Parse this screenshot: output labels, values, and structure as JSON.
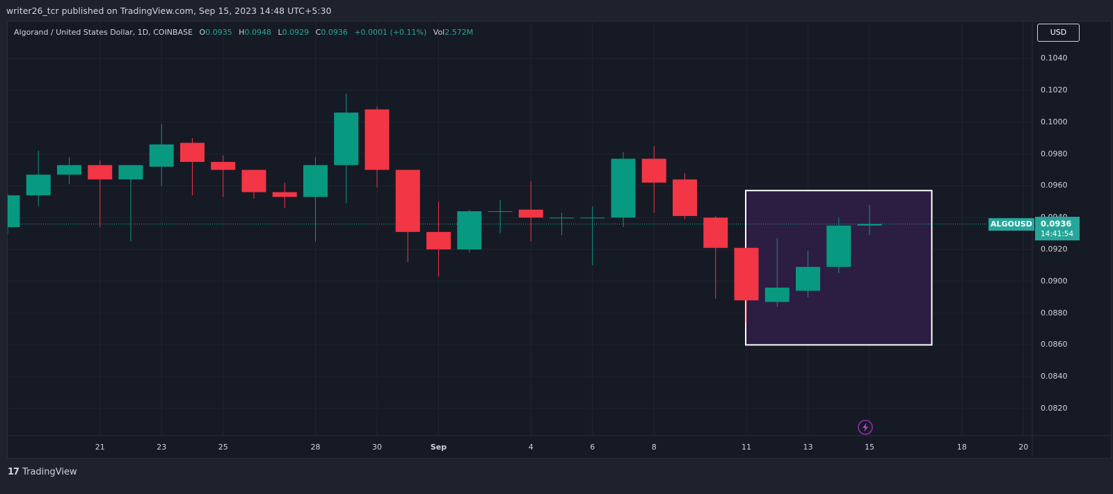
{
  "header": {
    "published": "writer26_tcr published on TradingView.com, Sep 15, 2023 14:48 UTC+5:30"
  },
  "legend": {
    "symbol": "Algorand / United States Dollar, 1D, COINBASE",
    "open_label": "O",
    "open": "0.0935",
    "high_label": "H",
    "high": "0.0948",
    "low_label": "L",
    "low": "0.0929",
    "close_label": "C",
    "close": "0.0936",
    "change": "+0.0001 (+0.11%)",
    "vol_label": "Vol",
    "vol": "2.572M"
  },
  "currency_button": "USD",
  "last_price": {
    "symbol": "ALGOUSD",
    "price": "0.0936",
    "countdown": "14:41:54"
  },
  "footer": {
    "logo_mark": "17",
    "logo_text": "TradingView"
  },
  "colors": {
    "up": "#089981",
    "down": "#f23645",
    "background": "#161a25",
    "grid": "#1f2430",
    "highlight_fill": "#2d1e44",
    "highlight_border": "#ffffff",
    "price_line": "#26a69a"
  },
  "icons": {
    "flash": "flash-icon"
  },
  "chart_data": {
    "type": "candlestick",
    "title": "Algorand / United States Dollar, 1D, COINBASE",
    "price_ticks": [
      "0.1040",
      "0.1020",
      "0.1000",
      "0.0980",
      "0.0960",
      "0.0940",
      "0.0920",
      "0.0900",
      "0.0880",
      "0.0860",
      "0.0840",
      "0.0820"
    ],
    "ylim": [
      0.08,
      0.1062
    ],
    "time_ticks": [
      {
        "label": "21",
        "date": "2023-08-21"
      },
      {
        "label": "23",
        "date": "2023-08-23"
      },
      {
        "label": "25",
        "date": "2023-08-25"
      },
      {
        "label": "28",
        "date": "2023-08-28"
      },
      {
        "label": "30",
        "date": "2023-08-30"
      },
      {
        "label": "Sep",
        "date": "2023-09-01",
        "bold": true
      },
      {
        "label": "4",
        "date": "2023-09-04"
      },
      {
        "label": "6",
        "date": "2023-09-06"
      },
      {
        "label": "8",
        "date": "2023-09-08"
      },
      {
        "label": "11",
        "date": "2023-09-11"
      },
      {
        "label": "13",
        "date": "2023-09-13"
      },
      {
        "label": "15",
        "date": "2023-09-15"
      },
      {
        "label": "18",
        "date": "2023-09-18"
      },
      {
        "label": "20",
        "date": "2023-09-20"
      }
    ],
    "xlim": [
      "2023-08-18",
      "2023-09-21"
    ],
    "candles": [
      {
        "date": "2023-08-18",
        "open": 0.0934,
        "high": 0.0955,
        "low": 0.093,
        "close": 0.0954
      },
      {
        "date": "2023-08-19",
        "open": 0.0954,
        "high": 0.0982,
        "low": 0.0947,
        "close": 0.0967
      },
      {
        "date": "2023-08-20",
        "open": 0.0967,
        "high": 0.0978,
        "low": 0.0961,
        "close": 0.0973
      },
      {
        "date": "2023-08-21",
        "open": 0.0973,
        "high": 0.0976,
        "low": 0.0934,
        "close": 0.0964
      },
      {
        "date": "2023-08-22",
        "open": 0.0964,
        "high": 0.0973,
        "low": 0.0925,
        "close": 0.0973
      },
      {
        "date": "2023-08-23",
        "open": 0.0972,
        "high": 0.0999,
        "low": 0.096,
        "close": 0.0986
      },
      {
        "date": "2023-08-24",
        "open": 0.0987,
        "high": 0.099,
        "low": 0.0954,
        "close": 0.0975
      },
      {
        "date": "2023-08-25",
        "open": 0.0975,
        "high": 0.0979,
        "low": 0.0953,
        "close": 0.097
      },
      {
        "date": "2023-08-26",
        "open": 0.097,
        "high": 0.097,
        "low": 0.0952,
        "close": 0.0956
      },
      {
        "date": "2023-08-27",
        "open": 0.0956,
        "high": 0.0962,
        "low": 0.0946,
        "close": 0.0953
      },
      {
        "date": "2023-08-28",
        "open": 0.0953,
        "high": 0.0978,
        "low": 0.0925,
        "close": 0.0973
      },
      {
        "date": "2023-08-29",
        "open": 0.0973,
        "high": 0.1018,
        "low": 0.0949,
        "close": 0.1006
      },
      {
        "date": "2023-08-30",
        "open": 0.1008,
        "high": 0.101,
        "low": 0.0959,
        "close": 0.097
      },
      {
        "date": "2023-08-31",
        "open": 0.097,
        "high": 0.097,
        "low": 0.0912,
        "close": 0.0931
      },
      {
        "date": "2023-09-01",
        "open": 0.0931,
        "high": 0.095,
        "low": 0.0903,
        "close": 0.092
      },
      {
        "date": "2023-09-02",
        "open": 0.092,
        "high": 0.0945,
        "low": 0.0918,
        "close": 0.0944
      },
      {
        "date": "2023-09-03",
        "open": 0.0944,
        "high": 0.0951,
        "low": 0.093,
        "close": 0.0944
      },
      {
        "date": "2023-09-04",
        "open": 0.0945,
        "high": 0.0963,
        "low": 0.0925,
        "close": 0.094
      },
      {
        "date": "2023-09-05",
        "open": 0.094,
        "high": 0.0943,
        "low": 0.0929,
        "close": 0.094
      },
      {
        "date": "2023-09-06",
        "open": 0.094,
        "high": 0.0947,
        "low": 0.091,
        "close": 0.094
      },
      {
        "date": "2023-09-07",
        "open": 0.094,
        "high": 0.0981,
        "low": 0.0934,
        "close": 0.0977
      },
      {
        "date": "2023-09-08",
        "open": 0.0977,
        "high": 0.0985,
        "low": 0.0943,
        "close": 0.0962
      },
      {
        "date": "2023-09-09",
        "open": 0.0964,
        "high": 0.0968,
        "low": 0.0939,
        "close": 0.0941
      },
      {
        "date": "2023-09-10",
        "open": 0.094,
        "high": 0.0941,
        "low": 0.0889,
        "close": 0.0921
      },
      {
        "date": "2023-09-11",
        "open": 0.0921,
        "high": 0.0921,
        "low": 0.0874,
        "close": 0.0888
      },
      {
        "date": "2023-09-12",
        "open": 0.0887,
        "high": 0.0927,
        "low": 0.0884,
        "close": 0.0896
      },
      {
        "date": "2023-09-13",
        "open": 0.0894,
        "high": 0.0919,
        "low": 0.089,
        "close": 0.0909
      },
      {
        "date": "2023-09-14",
        "open": 0.0909,
        "high": 0.094,
        "low": 0.0905,
        "close": 0.0935
      },
      {
        "date": "2023-09-15",
        "open": 0.0935,
        "high": 0.0948,
        "low": 0.0929,
        "close": 0.0936
      }
    ],
    "last_price_line": 0.0936,
    "highlight_box": {
      "from": "2023-09-11",
      "to": "2023-09-17",
      "price_top": 0.0957,
      "price_bottom": 0.086
    }
  }
}
